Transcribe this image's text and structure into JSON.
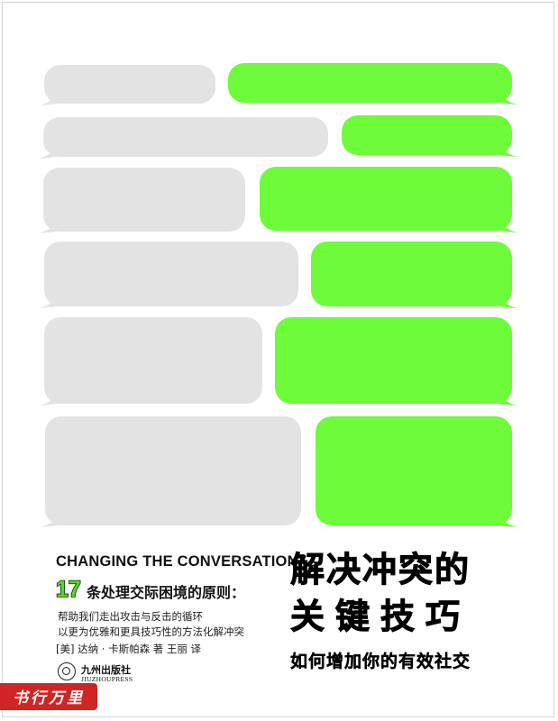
{
  "cover": {
    "english_title": "CHANGING THE CONVERSATION",
    "principle_number": "17",
    "principle_text": "条处理交际困境的原则：",
    "description_line1": "帮助我们走出攻击与反击的循环",
    "description_line2": "以更为优雅和更具技巧性的方法化解冲突",
    "authors": "[美] 达纳 · 卡斯帕森 著 王丽 译",
    "publisher_cn": "九州出版社",
    "publisher_en": "JIUZHOUPRESS",
    "chinese_title_line1": "解决冲突的",
    "chinese_title_line2": "关键技巧",
    "chinese_subtitle": "如何增加你的有效社交",
    "watermark": "书行万里"
  },
  "colors": {
    "gray_bubble": "#e3e3e3",
    "green_bubble": "#6dfb3a",
    "watermark_red": "#cf2525",
    "text": "#111111"
  }
}
